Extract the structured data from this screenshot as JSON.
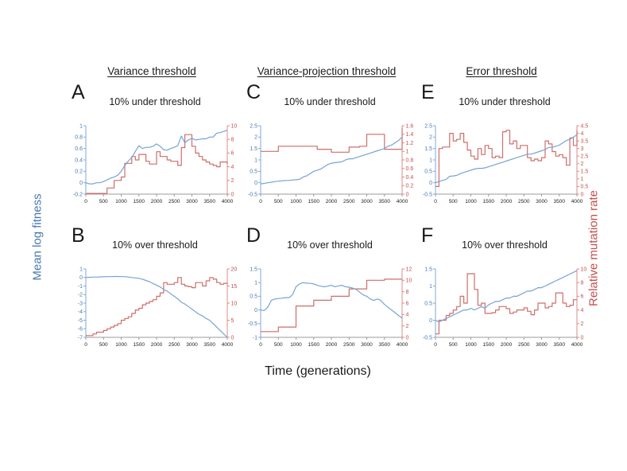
{
  "figure": {
    "column_headers": [
      "Variance threshold",
      "Variance-projection threshold",
      "Error threshold"
    ],
    "y_axis_left_label": "Mean log fitness",
    "y_axis_right_label": "Relative mutation rate",
    "x_axis_label": "Time (generations)",
    "colors": {
      "blue_text": "#4878B0",
      "blue_axis": "#7FA8DA",
      "blue_line": "#76A3D6",
      "red_text": "#C0504D",
      "red_axis": "#D98C88",
      "red_line": "#CE6E69",
      "x_axis": "#9B9B9B",
      "x_text": "#1A1A1A"
    }
  },
  "chart_data": [
    {
      "panel": "A",
      "column": "Variance threshold",
      "title": "10% under threshold",
      "type": "line",
      "x_range": [
        0,
        4000
      ],
      "x_step": 100,
      "x_ticks": [
        0,
        500,
        1000,
        1500,
        2000,
        2500,
        3000,
        3500,
        4000
      ],
      "left_axis": {
        "label": "Mean log fitness",
        "range": [
          -0.2,
          1
        ],
        "ticks": [
          1,
          0.8,
          0.6,
          0.4,
          0.2,
          0,
          -0.2
        ]
      },
      "right_axis": {
        "label": "Relative mutation rate",
        "range": [
          0,
          10
        ],
        "ticks": [
          10,
          8,
          6,
          4,
          2,
          0
        ]
      },
      "series": [
        {
          "name": "Mean log fitness",
          "axis": "left",
          "type": "line",
          "color": "#76A3D6",
          "values": [
            0,
            -0.02,
            -0.02,
            0,
            0,
            0.02,
            0.05,
            0.08,
            0.1,
            0.13,
            0.2,
            0.3,
            0.38,
            0.44,
            0.55,
            0.65,
            0.6,
            0.62,
            0.62,
            0.64,
            0.68,
            0.64,
            0.58,
            0.57,
            0.6,
            0.62,
            0.65,
            0.82,
            0.7,
            0.75,
            0.78,
            0.75,
            0.76,
            0.77,
            0.77,
            0.8,
            0.8,
            0.87,
            0.88,
            0.9,
            0.92
          ]
        },
        {
          "name": "Relative mutation rate",
          "axis": "right",
          "type": "step",
          "color": "#CE6E69",
          "values": [
            0.1,
            0.1,
            0.1,
            0.1,
            0.1,
            0.1,
            0.9,
            0.9,
            2,
            2,
            2.5,
            4.5,
            4.5,
            5.5,
            5,
            5.8,
            5.8,
            4.8,
            4.4,
            4.4,
            6.2,
            5.5,
            5.5,
            5,
            4.8,
            4.8,
            4.2,
            6.8,
            8.7,
            8.7,
            7,
            6,
            5.5,
            5,
            4.7,
            4.4,
            4.2,
            4,
            4.7,
            4.7,
            4.4
          ]
        }
      ]
    },
    {
      "panel": "C",
      "column": "Variance-projection threshold",
      "title": "10% under threshold",
      "type": "line",
      "x_range": [
        0,
        4000
      ],
      "x_step": 100,
      "x_ticks": [
        0,
        500,
        1000,
        1500,
        2000,
        2500,
        3000,
        3500,
        4000
      ],
      "left_axis": {
        "label": "Mean log fitness",
        "range": [
          -0.5,
          2.5
        ],
        "ticks": [
          2.5,
          2,
          1.5,
          1,
          0.5,
          0,
          -0.5
        ]
      },
      "right_axis": {
        "label": "Relative mutation rate",
        "range": [
          0,
          1.6
        ],
        "ticks": [
          1.6,
          1.4,
          1.2,
          1,
          0.8,
          0.6,
          0.4,
          0.2,
          0
        ]
      },
      "series": [
        {
          "name": "Mean log fitness",
          "axis": "left",
          "type": "line",
          "color": "#76A3D6",
          "values": [
            -0.05,
            -0.03,
            0,
            0.02,
            0.05,
            0.07,
            0.08,
            0.1,
            0.1,
            0.12,
            0.13,
            0.15,
            0.25,
            0.3,
            0.4,
            0.5,
            0.55,
            0.6,
            0.7,
            0.8,
            0.85,
            0.88,
            0.9,
            0.92,
            1,
            1.05,
            1.05,
            1.1,
            1.15,
            1.2,
            1.25,
            1.3,
            1.35,
            1.4,
            1.45,
            1.5,
            1.6,
            1.65,
            1.75,
            1.85,
            2
          ]
        },
        {
          "name": "Relative mutation rate",
          "axis": "right",
          "type": "step",
          "color": "#CE6E69",
          "values": [
            1,
            1,
            1,
            1,
            1,
            1.12,
            1.12,
            1.12,
            1.12,
            1.12,
            1.12,
            1.12,
            1.12,
            1.12,
            1.12,
            1.12,
            1.05,
            1.05,
            1.05,
            1.05,
            0.98,
            0.98,
            0.98,
            0.98,
            0.98,
            1.1,
            1.1,
            1.1,
            1.12,
            1.12,
            1.4,
            1.4,
            1.4,
            1.4,
            1.4,
            1.05,
            1.05,
            1.05,
            1.05,
            1.05,
            1.55
          ]
        }
      ]
    },
    {
      "panel": "E",
      "column": "Error threshold",
      "title": "10% under threshold",
      "type": "line",
      "x_range": [
        0,
        4000
      ],
      "x_step": 100,
      "x_ticks": [
        0,
        500,
        1000,
        1500,
        2000,
        2500,
        3000,
        3500,
        4000
      ],
      "left_axis": {
        "label": "Mean log fitness",
        "range": [
          -0.5,
          2.5
        ],
        "ticks": [
          2.5,
          2,
          1.5,
          1,
          0.5,
          0,
          -0.5
        ]
      },
      "right_axis": {
        "label": "Relative mutation rate",
        "range": [
          0,
          4.5
        ],
        "ticks": [
          4.5,
          4,
          3.5,
          3,
          2.5,
          2,
          1.5,
          1,
          0.5,
          0
        ]
      },
      "series": [
        {
          "name": "Mean log fitness",
          "axis": "left",
          "type": "line",
          "color": "#76A3D6",
          "values": [
            0,
            0.05,
            0.1,
            0.15,
            0.28,
            0.3,
            0.32,
            0.4,
            0.45,
            0.5,
            0.55,
            0.6,
            0.63,
            0.63,
            0.65,
            0.7,
            0.75,
            0.8,
            0.85,
            0.9,
            0.95,
            1,
            1.05,
            1.1,
            1.15,
            1.2,
            1.25,
            1.25,
            1.3,
            1.35,
            1.4,
            1.45,
            1.55,
            1.55,
            1.6,
            1.65,
            1.75,
            1.85,
            1.9,
            2,
            2.1
          ]
        },
        {
          "name": "Relative mutation rate",
          "axis": "right",
          "type": "step",
          "color": "#CE6E69",
          "values": [
            0.5,
            3,
            3.1,
            3.1,
            4,
            3.5,
            3.6,
            4,
            3.4,
            2.9,
            2.5,
            2.3,
            3,
            2.6,
            3.2,
            3,
            2.4,
            2.5,
            2.4,
            4.1,
            4.2,
            3.3,
            3.5,
            3,
            3.2,
            3.2,
            2.4,
            2.2,
            2.3,
            2.2,
            2.4,
            3.5,
            3.3,
            2.8,
            2.5,
            2.6,
            2.4,
            1.9,
            3.7,
            3.2,
            4.2
          ]
        }
      ]
    },
    {
      "panel": "B",
      "column": "Variance threshold",
      "title": "10% over threshold",
      "type": "line",
      "x_range": [
        0,
        4000
      ],
      "x_step": 100,
      "x_ticks": [
        0,
        500,
        1000,
        1500,
        2000,
        2500,
        3000,
        3500,
        4000
      ],
      "left_axis": {
        "label": "Mean log fitness",
        "range": [
          -7,
          1
        ],
        "ticks": [
          1,
          0,
          -1,
          -2,
          -3,
          -4,
          -5,
          -6,
          -7
        ]
      },
      "right_axis": {
        "label": "Relative mutation rate",
        "range": [
          0,
          20
        ],
        "ticks": [
          20,
          15,
          10,
          5,
          0
        ]
      },
      "series": [
        {
          "name": "Mean log fitness",
          "axis": "left",
          "type": "line",
          "color": "#76A3D6",
          "values": [
            0,
            0.02,
            0.04,
            0.05,
            0.06,
            0.08,
            0.1,
            0.1,
            0.12,
            0.12,
            0.1,
            0.1,
            0.05,
            0,
            -0.05,
            -0.1,
            -0.2,
            -0.35,
            -0.5,
            -0.7,
            -0.9,
            -1.1,
            -1.4,
            -1.6,
            -1.9,
            -2.2,
            -2.5,
            -2.9,
            -3.1,
            -3.4,
            -3.7,
            -4,
            -4.3,
            -4.5,
            -4.8,
            -5,
            -5.4,
            -5.8,
            -6.2,
            -6.6,
            -7
          ]
        },
        {
          "name": "Relative mutation rate",
          "axis": "right",
          "type": "step",
          "color": "#CE6E69",
          "values": [
            0.5,
            0.5,
            1,
            1.5,
            1.5,
            2,
            2.5,
            3,
            3.5,
            4,
            5,
            5.5,
            6,
            7,
            8,
            8.5,
            9.5,
            10,
            10.5,
            11,
            12,
            13,
            16,
            15.5,
            15.5,
            16,
            17.5,
            15.5,
            15,
            14.8,
            14.5,
            16,
            16,
            15,
            16.5,
            17.5,
            17,
            16,
            15.5,
            15.8,
            16
          ]
        }
      ]
    },
    {
      "panel": "D",
      "column": "Variance-projection threshold",
      "title": "10% over threshold",
      "type": "line",
      "x_range": [
        0,
        4000
      ],
      "x_step": 100,
      "x_ticks": [
        0,
        500,
        1000,
        1500,
        2000,
        2500,
        3000,
        3500,
        4000
      ],
      "left_axis": {
        "label": "Mean log fitness",
        "range": [
          -1,
          1.5
        ],
        "ticks": [
          1.5,
          1,
          0.5,
          0,
          -0.5,
          -1
        ]
      },
      "right_axis": {
        "label": "Relative mutation rate",
        "range": [
          0,
          12
        ],
        "ticks": [
          12,
          10,
          8,
          6,
          4,
          2,
          0
        ]
      },
      "series": [
        {
          "name": "Mean log fitness",
          "axis": "left",
          "type": "line",
          "color": "#76A3D6",
          "values": [
            0,
            -0.02,
            0.1,
            0.35,
            0.4,
            0.42,
            0.43,
            0.45,
            0.45,
            0.55,
            0.85,
            0.95,
            1,
            0.98,
            0.97,
            0.95,
            0.9,
            0.87,
            0.85,
            0.87,
            0.9,
            0.85,
            0.88,
            0.9,
            0.85,
            0.83,
            0.8,
            0.75,
            0.65,
            0.55,
            0.5,
            0.4,
            0.35,
            0.4,
            0.35,
            0.2,
            0.1,
            0,
            -0.1,
            -0.2,
            -0.3
          ]
        },
        {
          "name": "Relative mutation rate",
          "axis": "right",
          "type": "step",
          "color": "#CE6E69",
          "values": [
            1,
            1,
            1,
            1,
            1,
            1.8,
            1.8,
            1.8,
            1.8,
            1.8,
            5.5,
            5.5,
            5.5,
            5.5,
            5.5,
            6.5,
            6.5,
            6.5,
            6.5,
            6.5,
            7.2,
            7.2,
            7.2,
            7.2,
            7.2,
            8.5,
            8.5,
            8.5,
            8.5,
            8.5,
            10,
            10,
            10,
            10,
            10,
            10.2,
            10.2,
            10.2,
            10.2,
            10.2,
            10.2
          ]
        }
      ]
    },
    {
      "panel": "F",
      "column": "Error threshold",
      "title": "10% over threshold",
      "type": "line",
      "x_range": [
        0,
        4000
      ],
      "x_step": 100,
      "x_ticks": [
        0,
        500,
        1000,
        1500,
        2000,
        2500,
        3000,
        3500,
        4000
      ],
      "left_axis": {
        "label": "Mean log fitness",
        "range": [
          -0.5,
          1.5
        ],
        "ticks": [
          1.5,
          1,
          0.5,
          0,
          -0.5
        ]
      },
      "right_axis": {
        "label": "Relative mutation rate",
        "range": [
          0,
          10
        ],
        "ticks": [
          10,
          8,
          6,
          4,
          2,
          0
        ]
      },
      "series": [
        {
          "name": "Mean log fitness",
          "axis": "left",
          "type": "line",
          "color": "#76A3D6",
          "values": [
            0,
            -0.05,
            0,
            0.05,
            0.1,
            0.15,
            0.2,
            0.25,
            0.3,
            0.3,
            0.35,
            0.3,
            0.35,
            0.4,
            0.35,
            0.45,
            0.5,
            0.55,
            0.55,
            0.6,
            0.65,
            0.65,
            0.7,
            0.7,
            0.75,
            0.8,
            0.85,
            0.85,
            0.9,
            0.95,
            0.95,
            1,
            1.05,
            1.1,
            1.15,
            1.2,
            1.25,
            1.3,
            1.35,
            1.4,
            1.45
          ]
        },
        {
          "name": "Relative mutation rate",
          "axis": "right",
          "type": "step",
          "color": "#CE6E69",
          "values": [
            0.5,
            2.5,
            2.5,
            3.2,
            3.5,
            4,
            4.5,
            6,
            5,
            9.3,
            9.3,
            7,
            4.7,
            5,
            3.5,
            3.5,
            3.6,
            4,
            4.5,
            4.5,
            4.2,
            3.5,
            3.7,
            4,
            4,
            4.3,
            3.8,
            3.3,
            4,
            5,
            5,
            4.3,
            4.5,
            5,
            6.5,
            6.5,
            5,
            4.5,
            4.7,
            5.5,
            5.5
          ]
        }
      ]
    }
  ]
}
